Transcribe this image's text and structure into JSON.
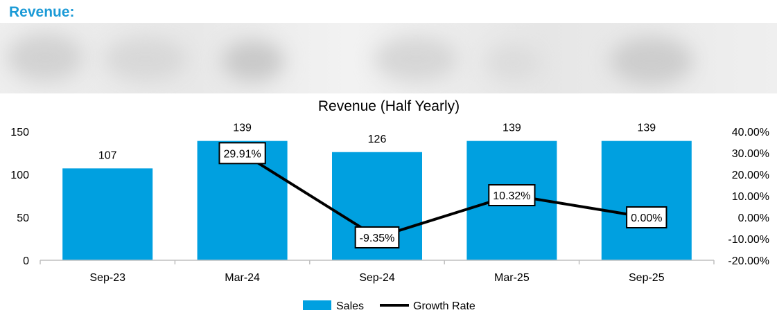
{
  "section_heading": "Revenue:",
  "colors": {
    "heading": "#1b9ad6",
    "bar": "#00a0e0",
    "line": "#000000",
    "axis": "#bfbfbf",
    "text": "#000000"
  },
  "chart_data": {
    "type": "bar",
    "title": "Revenue (Half Yearly)",
    "categories": [
      "Sep-23",
      "Mar-24",
      "Sep-24",
      "Mar-25",
      "Sep-25"
    ],
    "series": [
      {
        "name": "Sales",
        "kind": "bar",
        "axis": "left",
        "values": [
          107,
          139,
          126,
          139,
          139
        ],
        "labels": [
          "107",
          "139",
          "126",
          "139",
          "139"
        ]
      },
      {
        "name": "Growth Rate",
        "kind": "line",
        "axis": "right",
        "points": [
          {
            "category": "Mar-24",
            "value": 29.91,
            "label": "29.91%"
          },
          {
            "category": "Sep-24",
            "value": -9.35,
            "label": "-9.35%"
          },
          {
            "category": "Mar-25",
            "value": 10.32,
            "label": "10.32%"
          },
          {
            "category": "Sep-25",
            "value": 0.0,
            "label": "0.00%"
          }
        ]
      }
    ],
    "y_left": {
      "min": 0,
      "max": 150,
      "ticks": [
        0,
        50,
        100,
        150
      ],
      "tick_labels": [
        "0",
        "50",
        "100",
        "150"
      ]
    },
    "y_right": {
      "min": -20,
      "max": 40,
      "ticks": [
        -20,
        -10,
        0,
        10,
        20,
        30,
        40
      ],
      "tick_labels": [
        "-20.00%",
        "-10.00%",
        "0.00%",
        "10.00%",
        "20.00%",
        "30.00%",
        "40.00%"
      ]
    },
    "xlabel": "",
    "ylabel": "",
    "grid": false,
    "legend_position": "bottom-center"
  }
}
